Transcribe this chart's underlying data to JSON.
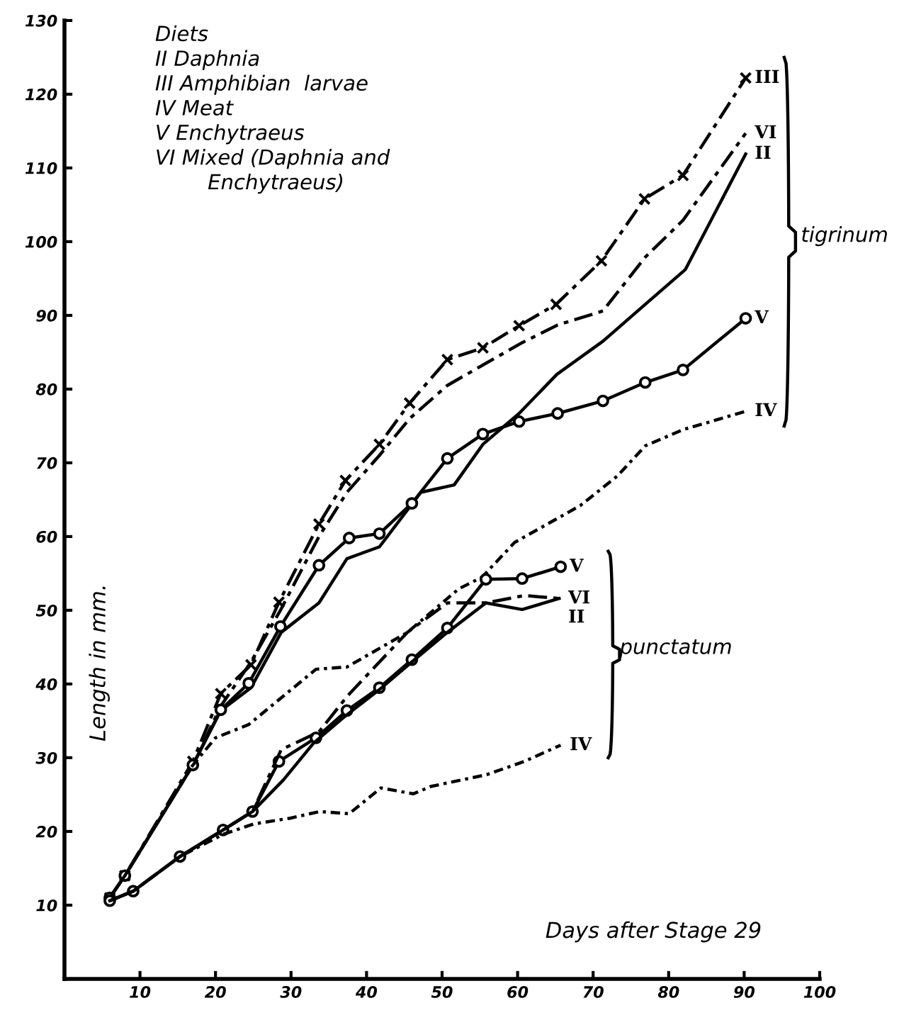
{
  "chart_data": {
    "type": "line",
    "xlabel": "Days after Stage 29",
    "ylabel": "Length in mm.",
    "xlim": [
      0,
      100
    ],
    "ylim": [
      0,
      130
    ],
    "xticks": [
      10,
      20,
      30,
      40,
      50,
      60,
      70,
      80,
      90,
      100
    ],
    "yticks": [
      10,
      20,
      30,
      40,
      50,
      60,
      70,
      80,
      90,
      100,
      110,
      120,
      130
    ],
    "grid": false,
    "legend": false,
    "annotations": [
      "Diets\nII Daphnia\nIII Amphibian  larvae\nIV Meat\nV Enchytraeus\nVI Mixed (Daphnia and\n        Enchytraeus)",
      "tigrinum",
      "punctatum"
    ],
    "series": [
      {
        "name": "III",
        "color": "#000000",
        "line_style": "dashed",
        "marker": "cross",
        "x": [
          6,
          8,
          17,
          20.7,
          24.7,
          28.4,
          33.7,
          37.2,
          41.7,
          45.7,
          50.7,
          55.4,
          60.2,
          65.1,
          71.1,
          76.8,
          81.9,
          90.2
        ],
        "values": [
          11,
          14,
          29.5,
          38.7,
          42.6,
          51.1,
          61.7,
          67.6,
          72.5,
          78.1,
          84,
          85.6,
          88.6,
          91.5,
          97.4,
          105.8,
          109,
          122.2
        ]
      },
      {
        "name": "VI",
        "color": "#000000",
        "line_style": "dashed",
        "marker": "none",
        "x": [
          6,
          8,
          17,
          20.7,
          24.7,
          28.6,
          33.7,
          37.4,
          41.7,
          45.7,
          50.7,
          55.8,
          60.6,
          65.3,
          71.3,
          76.9,
          81.9,
          90.2
        ],
        "values": [
          11,
          14,
          29,
          37,
          43,
          50,
          60,
          66,
          71,
          76,
          80.5,
          83.5,
          86.3,
          88.7,
          90.6,
          97.9,
          102.9,
          114.7
        ]
      },
      {
        "name": "II",
        "color": "#000000",
        "line_style": "solid",
        "marker": "none",
        "x": [
          6,
          8,
          17,
          20.7,
          24.7,
          28.7,
          33.7,
          37.4,
          41.7,
          47.2,
          51.6,
          55.4,
          60.2,
          65.2,
          71.3,
          76.9,
          82.2,
          90.2
        ],
        "values": [
          11,
          14,
          29,
          36.4,
          39.5,
          47,
          51,
          57,
          58.6,
          66,
          67,
          72.5,
          76.7,
          82,
          86.5,
          91.5,
          96.2,
          111.9
        ]
      },
      {
        "name": "V",
        "color": "#000000",
        "line_style": "solid",
        "marker": "circle",
        "x": [
          6,
          8,
          17,
          20.7,
          24.4,
          28.6,
          33.7,
          37.7,
          41.7,
          46,
          50.7,
          55.4,
          60.2,
          65.3,
          71.3,
          76.9,
          81.9,
          90.2
        ],
        "values": [
          11,
          14,
          29,
          36.5,
          40.1,
          47.8,
          56.1,
          59.8,
          60.4,
          64.5,
          70.6,
          73.9,
          75.6,
          76.7,
          78.4,
          80.9,
          82.6,
          89.6
        ]
      },
      {
        "name": "IV",
        "color": "#000000",
        "line_style": "dotted",
        "marker": "none",
        "x": [
          6,
          8,
          17,
          20,
          24.4,
          33.3,
          37.4,
          45.4,
          52.2,
          55.3,
          59.6,
          68.3,
          73.2,
          76.9,
          81.9,
          85.6,
          90.2
        ],
        "values": [
          11,
          14,
          29,
          32.7,
          34.5,
          42,
          42.3,
          47,
          52.9,
          54.5,
          59.2,
          64.2,
          68.2,
          72.3,
          74.5,
          75.6,
          77
        ]
      },
      {
        "name": "V",
        "color": "#000000",
        "line_style": "solid",
        "marker": "circle",
        "x": [
          6,
          9.1,
          15.3,
          21,
          24.9,
          28.4,
          33.3,
          37.4,
          41.7,
          46,
          50.7,
          55.8,
          60.6,
          65.7
        ],
        "values": [
          10.6,
          11.9,
          16.6,
          20.2,
          22.7,
          29.5,
          32.7,
          36.4,
          39.5,
          43.3,
          47.6,
          54.2,
          54.3,
          55.9
        ]
      },
      {
        "name": "VI",
        "color": "#000000",
        "line_style": "dashed",
        "marker": "none",
        "x": [
          6,
          9.1,
          15.3,
          21,
          24.9,
          28.7,
          33.7,
          37.4,
          45.4,
          50.7,
          55.8,
          60.9,
          65.5
        ],
        "values": [
          10.6,
          11.9,
          16.6,
          20.2,
          22.7,
          31.1,
          33.5,
          38.3,
          47,
          51,
          51,
          52,
          51.6
        ]
      },
      {
        "name": "II",
        "color": "#000000",
        "line_style": "solid",
        "marker": "none",
        "x": [
          6,
          9.1,
          15.3,
          21,
          24.9,
          29,
          33,
          37,
          42,
          46,
          50.7,
          55.8,
          60.6,
          65.5
        ],
        "values": [
          10.6,
          11.9,
          16.6,
          20.2,
          22.7,
          27,
          32,
          35.5,
          39.5,
          43,
          47,
          51,
          50.1,
          51.6
        ]
      },
      {
        "name": "IV",
        "color": "#000000",
        "line_style": "dotted",
        "marker": "none",
        "x": [
          6,
          9.1,
          15.3,
          21,
          25,
          29.9,
          33.8,
          37.7,
          41.9,
          46.2,
          48.5,
          55.9,
          60.9,
          65.7
        ],
        "values": [
          10.6,
          11.9,
          16.6,
          19.6,
          21,
          21.8,
          22.7,
          22.4,
          25.9,
          25.1,
          26.1,
          27.7,
          29.5,
          31.7
        ]
      }
    ]
  }
}
